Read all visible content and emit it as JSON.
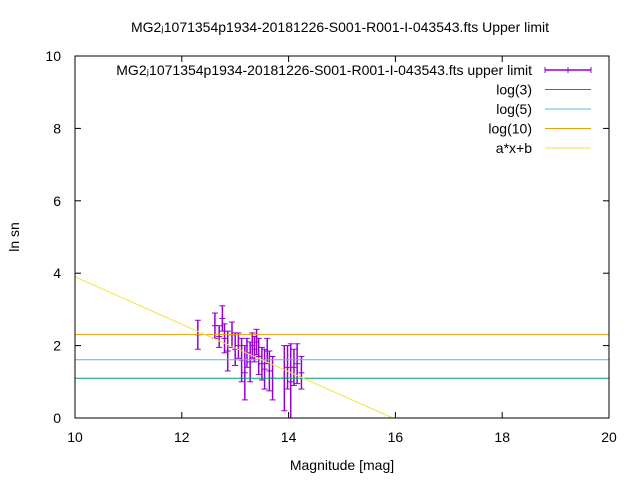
{
  "chart_data": {
    "type": "scatter",
    "title": "MG2ⱼ1071354p1934-20181226-S001-R001-I-043543.fts Upper limit",
    "xlabel": "Magnitude [mag]",
    "ylabel": "ln sn",
    "xlim": [
      10,
      20
    ],
    "ylim": [
      0,
      10
    ],
    "x_ticks": [
      "10",
      "12",
      "14",
      "16",
      "18",
      "20"
    ],
    "y_ticks": [
      "0",
      "2",
      "4",
      "6",
      "8",
      "10"
    ],
    "grid": false,
    "legend_position": "top-right",
    "series": [
      {
        "name": "MG2ⱼ1071354p1934-20181226-S001-R001-I-043543.fts upper limit",
        "kind": "errorbars",
        "color": "#9400d3",
        "points": [
          {
            "x": 12.3,
            "y": 2.3,
            "err": 0.4
          },
          {
            "x": 12.62,
            "y": 2.55,
            "err": 0.35
          },
          {
            "x": 12.7,
            "y": 2.25,
            "err": 0.3
          },
          {
            "x": 12.76,
            "y": 2.75,
            "err": 0.35
          },
          {
            "x": 12.8,
            "y": 2.2,
            "err": 0.4
          },
          {
            "x": 12.86,
            "y": 1.85,
            "err": 0.55
          },
          {
            "x": 12.94,
            "y": 2.3,
            "err": 0.35
          },
          {
            "x": 13.0,
            "y": 1.9,
            "err": 0.45
          },
          {
            "x": 13.06,
            "y": 2.0,
            "err": 0.35
          },
          {
            "x": 13.12,
            "y": 1.6,
            "err": 0.6
          },
          {
            "x": 13.18,
            "y": 1.25,
            "err": 0.75
          },
          {
            "x": 13.22,
            "y": 1.8,
            "err": 0.4
          },
          {
            "x": 13.28,
            "y": 1.55,
            "err": 0.55
          },
          {
            "x": 13.32,
            "y": 2.0,
            "err": 0.35
          },
          {
            "x": 13.36,
            "y": 1.9,
            "err": 0.35
          },
          {
            "x": 13.4,
            "y": 2.1,
            "err": 0.35
          },
          {
            "x": 13.44,
            "y": 1.7,
            "err": 0.5
          },
          {
            "x": 13.5,
            "y": 1.5,
            "err": 0.45
          },
          {
            "x": 13.55,
            "y": 1.35,
            "err": 0.55
          },
          {
            "x": 13.6,
            "y": 1.85,
            "err": 0.35
          },
          {
            "x": 13.64,
            "y": 1.3,
            "err": 0.55
          },
          {
            "x": 13.7,
            "y": 1.1,
            "err": 0.6
          },
          {
            "x": 13.92,
            "y": 1.1,
            "err": 0.9
          },
          {
            "x": 13.98,
            "y": 1.4,
            "err": 0.6
          },
          {
            "x": 14.04,
            "y": 1.0,
            "err": 1.05
          },
          {
            "x": 14.1,
            "y": 1.4,
            "err": 0.5
          },
          {
            "x": 14.16,
            "y": 1.5,
            "err": 0.55
          },
          {
            "x": 14.24,
            "y": 1.25,
            "err": 0.45
          }
        ]
      },
      {
        "name": "log(3)",
        "kind": "hline",
        "color": "#009e73",
        "y": 1.0986
      },
      {
        "name": "log(5)",
        "kind": "hline",
        "color": "#56b4e9",
        "y": 1.6094
      },
      {
        "name": "log(10)",
        "kind": "hline",
        "color": "#e69f00",
        "y": 2.3026
      },
      {
        "name": "a*x+b",
        "kind": "line",
        "color": "#f0e442",
        "x": [
          10,
          15.95
        ],
        "y": [
          3.9,
          0
        ]
      }
    ]
  }
}
